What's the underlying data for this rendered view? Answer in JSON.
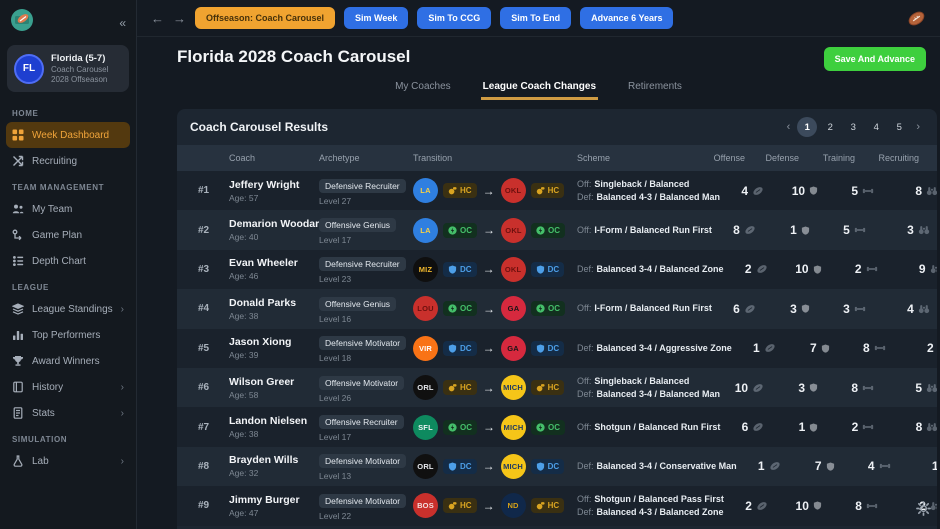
{
  "sidebar": {
    "logo_icon": "football-field-logo",
    "collapse_icon": "«",
    "team": {
      "abbr": "FL",
      "name": "Florida (5-7)",
      "line2": "Coach Carousel",
      "line3": "2028 Offseason"
    },
    "sections": [
      {
        "title": "HOME",
        "items": [
          {
            "label": "Week Dashboard",
            "icon": "grid",
            "active": true
          },
          {
            "label": "Recruiting",
            "icon": "recruit"
          }
        ]
      },
      {
        "title": "TEAM MANAGEMENT",
        "items": [
          {
            "label": "My Team",
            "icon": "people"
          },
          {
            "label": "Game Plan",
            "icon": "plan"
          },
          {
            "label": "Depth Chart",
            "icon": "depth"
          }
        ]
      },
      {
        "title": "LEAGUE",
        "items": [
          {
            "label": "League Standings",
            "icon": "layers",
            "chevron": true
          },
          {
            "label": "Top Performers",
            "icon": "chart"
          },
          {
            "label": "Award Winners",
            "icon": "trophy"
          },
          {
            "label": "History",
            "icon": "history",
            "chevron": true
          },
          {
            "label": "Stats",
            "icon": "doc",
            "chevron": true
          }
        ]
      },
      {
        "title": "SIMULATION",
        "items": [
          {
            "label": "Lab",
            "icon": "flask",
            "chevron": true
          }
        ]
      }
    ]
  },
  "topbar": {
    "back_icon": "←",
    "forward_icon": "→",
    "offseason_button": "Offseason: Coach Carousel",
    "sim_buttons": [
      "Sim Week",
      "Sim To CCG",
      "Sim To End",
      "Advance 6 Years"
    ],
    "football_icon": "football-icon"
  },
  "header": {
    "title": "Florida 2028 Coach Carousel",
    "save_button": "Save And Advance"
  },
  "tabs": [
    {
      "label": "My Coaches",
      "active": false
    },
    {
      "label": "League Coach Changes",
      "active": true
    },
    {
      "label": "Retirements",
      "active": false
    }
  ],
  "panel": {
    "title": "Coach Carousel Results",
    "pagination": {
      "prev": "‹",
      "pages": [
        "1",
        "2",
        "3",
        "4",
        "5"
      ],
      "active": "1",
      "next": "›"
    },
    "columns": [
      "Coach",
      "Archetype",
      "Transition",
      "Scheme",
      "Offense",
      "Defense",
      "Training",
      "Recruiting"
    ]
  },
  "colors": {
    "accent_orange": "#f0a330",
    "accent_blue": "#2f6fe4",
    "accent_green": "#3ecf3e",
    "tab_underline": "#cf9b43",
    "teams": {
      "LA": {
        "bg": "#2f7fe0",
        "fg": "#f7d046"
      },
      "OKL": {
        "bg": "#c9302c",
        "fg": "#6e100e"
      },
      "MIZ": {
        "bg": "#0f0f0f",
        "fg": "#f1b82d"
      },
      "LOU": {
        "bg": "#c9302c",
        "fg": "#6e100e"
      },
      "GA": {
        "bg": "#d6293e",
        "fg": "#161616"
      },
      "VIR": {
        "bg": "#f97316",
        "fg": "#ffffff"
      },
      "ORL": {
        "bg": "#101010",
        "fg": "#e5e7eb"
      },
      "MICH": {
        "bg": "#f5c518",
        "fg": "#1f3a63"
      },
      "SFL": {
        "bg": "#0e8a5f",
        "fg": "#eef2f5"
      },
      "BOS": {
        "bg": "#c9302c",
        "fg": "#f3dede"
      },
      "ND": {
        "bg": "#10284a",
        "fg": "#d4a017"
      }
    },
    "roles": {
      "HC": {
        "bg": "#3a3012",
        "fg": "#d9a421",
        "icon": "whistle"
      },
      "OC": {
        "bg": "#12301f",
        "fg": "#45c06a",
        "icon": "bolt"
      },
      "DC": {
        "bg": "#142c47",
        "fg": "#4d9fe8",
        "icon": "shield"
      }
    },
    "stat_icons": [
      "football",
      "shield",
      "dumbbell",
      "binoculars"
    ]
  },
  "rows": [
    {
      "rank": "#1",
      "name": "Jeffery Wright",
      "age": "Age: 57",
      "archetype": "Defensive Recruiter",
      "level": "Level 27",
      "from": "LA",
      "to": "OKL",
      "role": "HC",
      "scheme": [
        {
          "prefix": "Off:",
          "text": "Singleback / Balanced"
        },
        {
          "prefix": "Def:",
          "text": "Balanced 4-3 / Balanced Man"
        }
      ],
      "stats": [
        4,
        10,
        5,
        8
      ]
    },
    {
      "rank": "#2",
      "name": "Demarion Woodard",
      "age": "Age: 40",
      "archetype": "Offensive Genius",
      "level": "Level 17",
      "from": "LA",
      "to": "OKL",
      "role": "OC",
      "scheme": [
        {
          "prefix": "Off:",
          "text": "I-Form / Balanced Run First"
        }
      ],
      "stats": [
        8,
        1,
        5,
        3
      ]
    },
    {
      "rank": "#3",
      "name": "Evan Wheeler",
      "age": "Age: 46",
      "archetype": "Defensive Recruiter",
      "level": "Level 23",
      "from": "MIZ",
      "to": "OKL",
      "role": "DC",
      "scheme": [
        {
          "prefix": "Def:",
          "text": "Balanced 3-4 / Balanced Zone"
        }
      ],
      "stats": [
        2,
        10,
        2,
        9
      ]
    },
    {
      "rank": "#4",
      "name": "Donald Parks",
      "age": "Age: 38",
      "archetype": "Offensive Genius",
      "level": "Level 16",
      "from": "LOU",
      "to": "GA",
      "role": "OC",
      "scheme": [
        {
          "prefix": "Off:",
          "text": "I-Form / Balanced Run First"
        }
      ],
      "stats": [
        6,
        3,
        3,
        4
      ]
    },
    {
      "rank": "#5",
      "name": "Jason Xiong",
      "age": "Age: 39",
      "archetype": "Defensive Motivator",
      "level": "Level 18",
      "from": "VIR",
      "to": "GA",
      "role": "DC",
      "scheme": [
        {
          "prefix": "Def:",
          "text": "Balanced 3-4 / Aggressive Zone"
        }
      ],
      "stats": [
        1,
        7,
        8,
        2
      ]
    },
    {
      "rank": "#6",
      "name": "Wilson Greer",
      "age": "Age: 58",
      "archetype": "Offensive Motivator",
      "level": "Level 26",
      "from": "ORL",
      "to": "MICH",
      "role": "HC",
      "scheme": [
        {
          "prefix": "Off:",
          "text": "Singleback / Balanced"
        },
        {
          "prefix": "Def:",
          "text": "Balanced 3-4 / Balanced Man"
        }
      ],
      "stats": [
        10,
        3,
        8,
        5
      ]
    },
    {
      "rank": "#7",
      "name": "Landon Nielsen",
      "age": "Age: 38",
      "archetype": "Offensive Recruiter",
      "level": "Level 17",
      "from": "SFL",
      "to": "MICH",
      "role": "OC",
      "scheme": [
        {
          "prefix": "Off:",
          "text": "Shotgun / Balanced Run First"
        }
      ],
      "stats": [
        6,
        1,
        2,
        8
      ]
    },
    {
      "rank": "#8",
      "name": "Brayden Wills",
      "age": "Age: 32",
      "archetype": "Defensive Motivator",
      "level": "Level 13",
      "from": "ORL",
      "to": "MICH",
      "role": "DC",
      "scheme": [
        {
          "prefix": "Def:",
          "text": "Balanced 3-4 / Conservative Man"
        }
      ],
      "stats": [
        1,
        7,
        4,
        1
      ]
    },
    {
      "rank": "#9",
      "name": "Jimmy Burger",
      "age": "Age: 47",
      "archetype": "Defensive Motivator",
      "level": "Level 22",
      "from": "BOS",
      "to": "ND",
      "role": "HC",
      "scheme": [
        {
          "prefix": "Off:",
          "text": "Shotgun / Balanced Pass First"
        },
        {
          "prefix": "Def:",
          "text": "Balanced 4-3 / Balanced Zone"
        }
      ],
      "stats": [
        2,
        10,
        8,
        2
      ]
    }
  ],
  "gear_icon": "settings-gear"
}
